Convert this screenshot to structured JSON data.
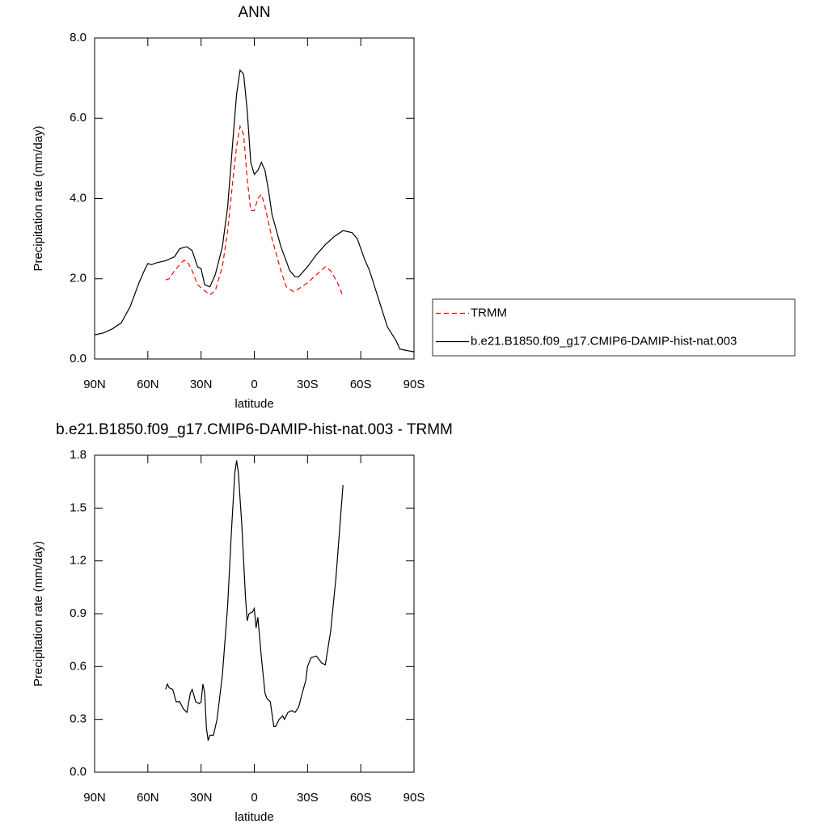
{
  "chart_data": [
    {
      "type": "line",
      "title": "ANN",
      "xlabel": "latitude",
      "ylabel": "Precipitation rate (mm/day)",
      "xlim": [
        90,
        -90
      ],
      "xticks": [
        {
          "value": 90,
          "label": "90N"
        },
        {
          "value": 60,
          "label": "60N"
        },
        {
          "value": 30,
          "label": "30N"
        },
        0,
        {
          "value": -30,
          "label": "30S"
        },
        {
          "value": -60,
          "label": "60S"
        },
        {
          "value": -90,
          "label": "90S"
        }
      ],
      "ylim": [
        0,
        8
      ],
      "yticks": [
        {
          "value": 0,
          "label": "0.0"
        },
        {
          "value": 2,
          "label": "2.0"
        },
        {
          "value": 4,
          "label": "4.0"
        },
        {
          "value": 6,
          "label": "6.0"
        },
        {
          "value": 8,
          "label": "8.0"
        }
      ],
      "legend": "right",
      "series": [
        {
          "name": "TRMM",
          "color": "#ff0000",
          "dashed": true,
          "x": [
            50,
            48,
            45,
            40,
            38,
            35,
            32,
            28,
            25,
            22,
            18,
            15,
            12,
            10,
            8,
            6,
            4,
            2,
            0,
            -2,
            -4,
            -6,
            -8,
            -10,
            -15,
            -18,
            -22,
            -25,
            -30,
            -35,
            -40,
            -43,
            -45,
            -48,
            -50
          ],
          "values": [
            1.97,
            2.0,
            2.2,
            2.45,
            2.45,
            2.2,
            1.85,
            1.7,
            1.6,
            1.7,
            2.3,
            3.2,
            4.5,
            5.3,
            5.8,
            5.6,
            4.5,
            3.7,
            3.7,
            4.0,
            4.1,
            3.8,
            3.4,
            3.0,
            2.2,
            1.8,
            1.68,
            1.75,
            1.9,
            2.1,
            2.3,
            2.2,
            2.05,
            1.8,
            1.55
          ]
        },
        {
          "name": "b.e21.B1850.f09_g17.CMIP6-DAMIP-hist-nat.003",
          "color": "#000000",
          "dashed": false,
          "x": [
            90,
            85,
            80,
            75,
            70,
            65,
            62,
            60,
            58,
            55,
            50,
            45,
            42,
            38,
            35,
            32,
            30,
            28,
            25,
            22,
            18,
            15,
            12,
            10,
            8,
            6,
            4,
            2,
            0,
            -2,
            -4,
            -6,
            -8,
            -10,
            -15,
            -20,
            -23,
            -25,
            -30,
            -35,
            -40,
            -45,
            -50,
            -55,
            -58,
            -62,
            -65,
            -70,
            -75,
            -80,
            -82,
            -85,
            -90
          ],
          "values": [
            0.6,
            0.65,
            0.75,
            0.9,
            1.3,
            1.9,
            2.2,
            2.38,
            2.35,
            2.4,
            2.45,
            2.55,
            2.75,
            2.8,
            2.7,
            2.3,
            2.25,
            1.85,
            1.8,
            2.1,
            2.8,
            3.8,
            5.5,
            6.6,
            7.2,
            7.1,
            6.2,
            4.9,
            4.6,
            4.7,
            4.9,
            4.7,
            4.2,
            3.6,
            2.8,
            2.2,
            2.05,
            2.05,
            2.3,
            2.6,
            2.85,
            3.05,
            3.2,
            3.15,
            3.0,
            2.5,
            2.2,
            1.5,
            0.8,
            0.45,
            0.25,
            0.22,
            0.18
          ]
        }
      ]
    },
    {
      "type": "line",
      "title": "b.e21.B1850.f09_g17.CMIP6-DAMIP-hist-nat.003 - TRMM",
      "xlabel": "latitude",
      "ylabel": "Precipitation rate (mm/day)",
      "xlim": [
        90,
        -90
      ],
      "xticks": [
        {
          "value": 90,
          "label": "90N"
        },
        {
          "value": 60,
          "label": "60N"
        },
        {
          "value": 30,
          "label": "30N"
        },
        0,
        {
          "value": -30,
          "label": "30S"
        },
        {
          "value": -60,
          "label": "60S"
        },
        {
          "value": -90,
          "label": "90S"
        }
      ],
      "ylim": [
        0,
        1.8
      ],
      "yticks": [
        {
          "value": 0,
          "label": "0.0"
        },
        0.3,
        0.6,
        0.9,
        1.2,
        1.5,
        1.8
      ],
      "series": [
        {
          "color": "#000000",
          "dashed": false,
          "x": [
            50,
            49,
            48,
            46,
            44,
            42,
            40,
            38,
            36,
            35,
            33,
            31,
            30,
            29,
            28,
            27,
            26,
            25,
            23,
            21,
            18,
            15,
            13,
            11,
            10,
            9,
            7,
            5,
            4,
            3,
            1,
            0,
            -1,
            -2,
            -4,
            -6,
            -7,
            -9,
            -10,
            -11,
            -12,
            -14,
            -16,
            -17,
            -19,
            -21,
            -23,
            -25,
            -27,
            -29,
            -30,
            -32,
            -35,
            -38,
            -40,
            -43,
            -46,
            -50
          ],
          "values": [
            0.47,
            0.5,
            0.48,
            0.47,
            0.4,
            0.4,
            0.36,
            0.34,
            0.45,
            0.47,
            0.4,
            0.39,
            0.4,
            0.5,
            0.45,
            0.25,
            0.18,
            0.21,
            0.21,
            0.3,
            0.55,
            0.95,
            1.35,
            1.7,
            1.77,
            1.7,
            1.4,
            1.0,
            0.86,
            0.9,
            0.91,
            0.93,
            0.82,
            0.88,
            0.65,
            0.45,
            0.42,
            0.4,
            0.33,
            0.26,
            0.26,
            0.3,
            0.32,
            0.3,
            0.34,
            0.35,
            0.34,
            0.37,
            0.45,
            0.52,
            0.6,
            0.65,
            0.66,
            0.62,
            0.61,
            0.8,
            1.1,
            1.63
          ]
        }
      ]
    }
  ]
}
